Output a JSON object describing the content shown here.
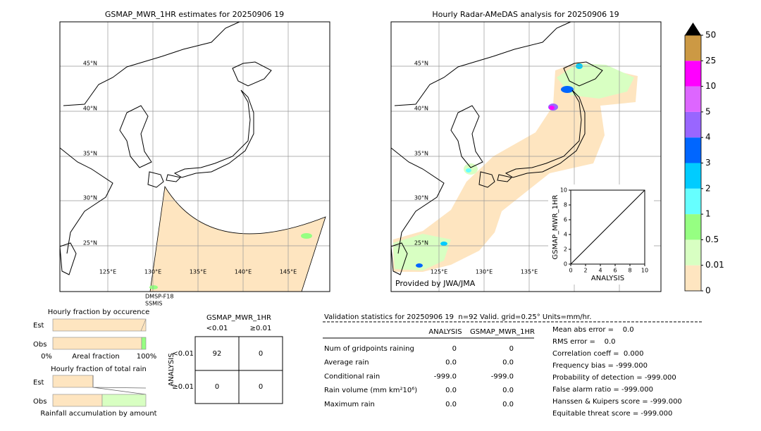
{
  "left_map": {
    "title": "GSMAP_MWR_1HR estimates for 20250906 19",
    "lat_labels": [
      "45°N",
      "40°N",
      "35°N",
      "30°N",
      "25°N"
    ],
    "lon_labels": [
      "125°E",
      "130°E",
      "135°E",
      "140°E",
      "145°E"
    ],
    "satellite": [
      "DMSP-F18",
      "SSMIS"
    ]
  },
  "right_map": {
    "title": "Hourly Radar-AMeDAS analysis for 20250906 19",
    "lat_labels": [
      "45°N",
      "40°N",
      "35°N",
      "30°N",
      "25°N"
    ],
    "lon_labels": [
      "125°E",
      "130°E",
      "135°E"
    ],
    "credit": "Provided by JWA/JMA"
  },
  "inset": {
    "xlabel": "ANALYSIS",
    "ylabel": "GSMAP_MWR_1HR",
    "xlim": [
      0,
      10
    ],
    "ylim": [
      0,
      10
    ],
    "xticks": [
      0,
      2,
      4,
      6,
      8,
      10
    ],
    "yticks": [
      0,
      2,
      4,
      6,
      8,
      10
    ]
  },
  "colorbar": {
    "labels": [
      "0",
      "0.01",
      "0.5",
      "1",
      "2",
      "3",
      "4",
      "5",
      "10",
      "25",
      "50"
    ],
    "colors": [
      "#fee5c0",
      "#d8ffc2",
      "#96ff82",
      "#66ffff",
      "#00ccff",
      "#0066ff",
      "#9966ff",
      "#dd66ff",
      "#ff00ff",
      "#cc9944"
    ],
    "extend_color": "#000000"
  },
  "fractions": {
    "occurrence_title": "Hourly fraction by occurence",
    "est": "Est",
    "obs": "Obs",
    "axis_left": "0%",
    "axis_mid": "Areal fraction",
    "axis_right": "100%",
    "rain_title": "Hourly fraction of total rain",
    "est2": "Est",
    "obs2": "Obs",
    "rain_axis": "Rainfall accumulation by amount"
  },
  "contingency": {
    "title": "GSMAP_MWR_1HR",
    "columns": [
      "<0.01",
      "≥0.01"
    ],
    "row_axis": "ANALYSIS",
    "rows": [
      "<0.01",
      "≥0.01"
    ],
    "cells": [
      [
        92,
        0
      ],
      [
        0,
        0
      ]
    ]
  },
  "validation": {
    "header": "Validation statistics for 20250906 19  n=92 Valid. grid=0.25° Units=mm/hr.",
    "columns": [
      "ANALYSIS",
      "GSMAP_MWR_1HR"
    ],
    "rows": [
      {
        "label": "Num of gridpoints raining",
        "analysis": "0",
        "gsmap": "0"
      },
      {
        "label": "Average rain",
        "analysis": "0.0",
        "gsmap": "0.0"
      },
      {
        "label": "Conditional rain",
        "analysis": "-999.0",
        "gsmap": "-999.0"
      },
      {
        "label": "Rain volume (mm km²10⁶)",
        "analysis": "0.0",
        "gsmap": "0.0"
      },
      {
        "label": "Maximum rain",
        "analysis": "0.0",
        "gsmap": "0.0"
      }
    ],
    "scores": [
      "Mean abs error =    0.0",
      "RMS error =    0.0",
      "Correlation coeff =  0.000",
      "Frequency bias = -999.000",
      "Probability of detection = -999.000",
      "False alarm ratio = -999.000",
      "Hanssen & Kuipers score = -999.000",
      "Equitable threat score = -999.000"
    ]
  }
}
